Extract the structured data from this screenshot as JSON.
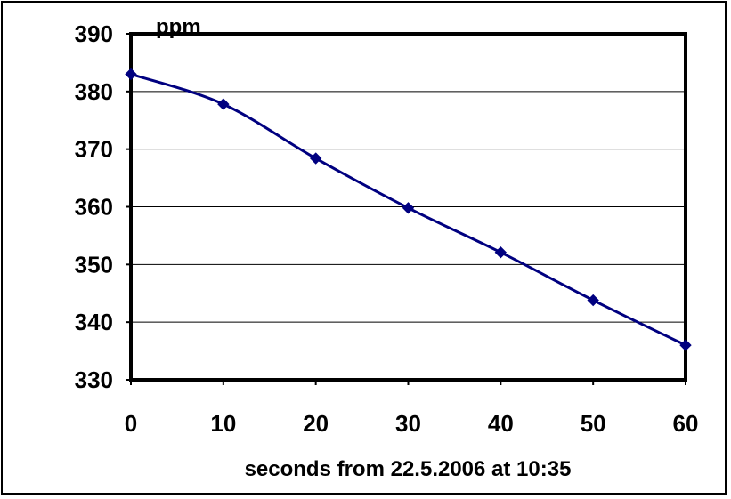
{
  "chart_data": {
    "type": "line",
    "unit_label": "ppm",
    "xlabel": "seconds from 22.5.2006 at 10:35",
    "ylabel": "",
    "x": [
      0,
      10,
      20,
      30,
      40,
      50,
      60
    ],
    "series": [
      {
        "values": [
          383,
          377.8,
          368.4,
          359.8,
          352.1,
          343.8,
          336
        ]
      }
    ],
    "xlim": [
      0,
      60
    ],
    "ylim": [
      330,
      390
    ],
    "x_ticks": [
      0,
      10,
      20,
      30,
      40,
      50,
      60
    ],
    "y_ticks": [
      330,
      340,
      350,
      360,
      370,
      380,
      390
    ],
    "grid": "horizontal",
    "line_color": "#000080",
    "marker": "diamond",
    "legend": "none"
  }
}
